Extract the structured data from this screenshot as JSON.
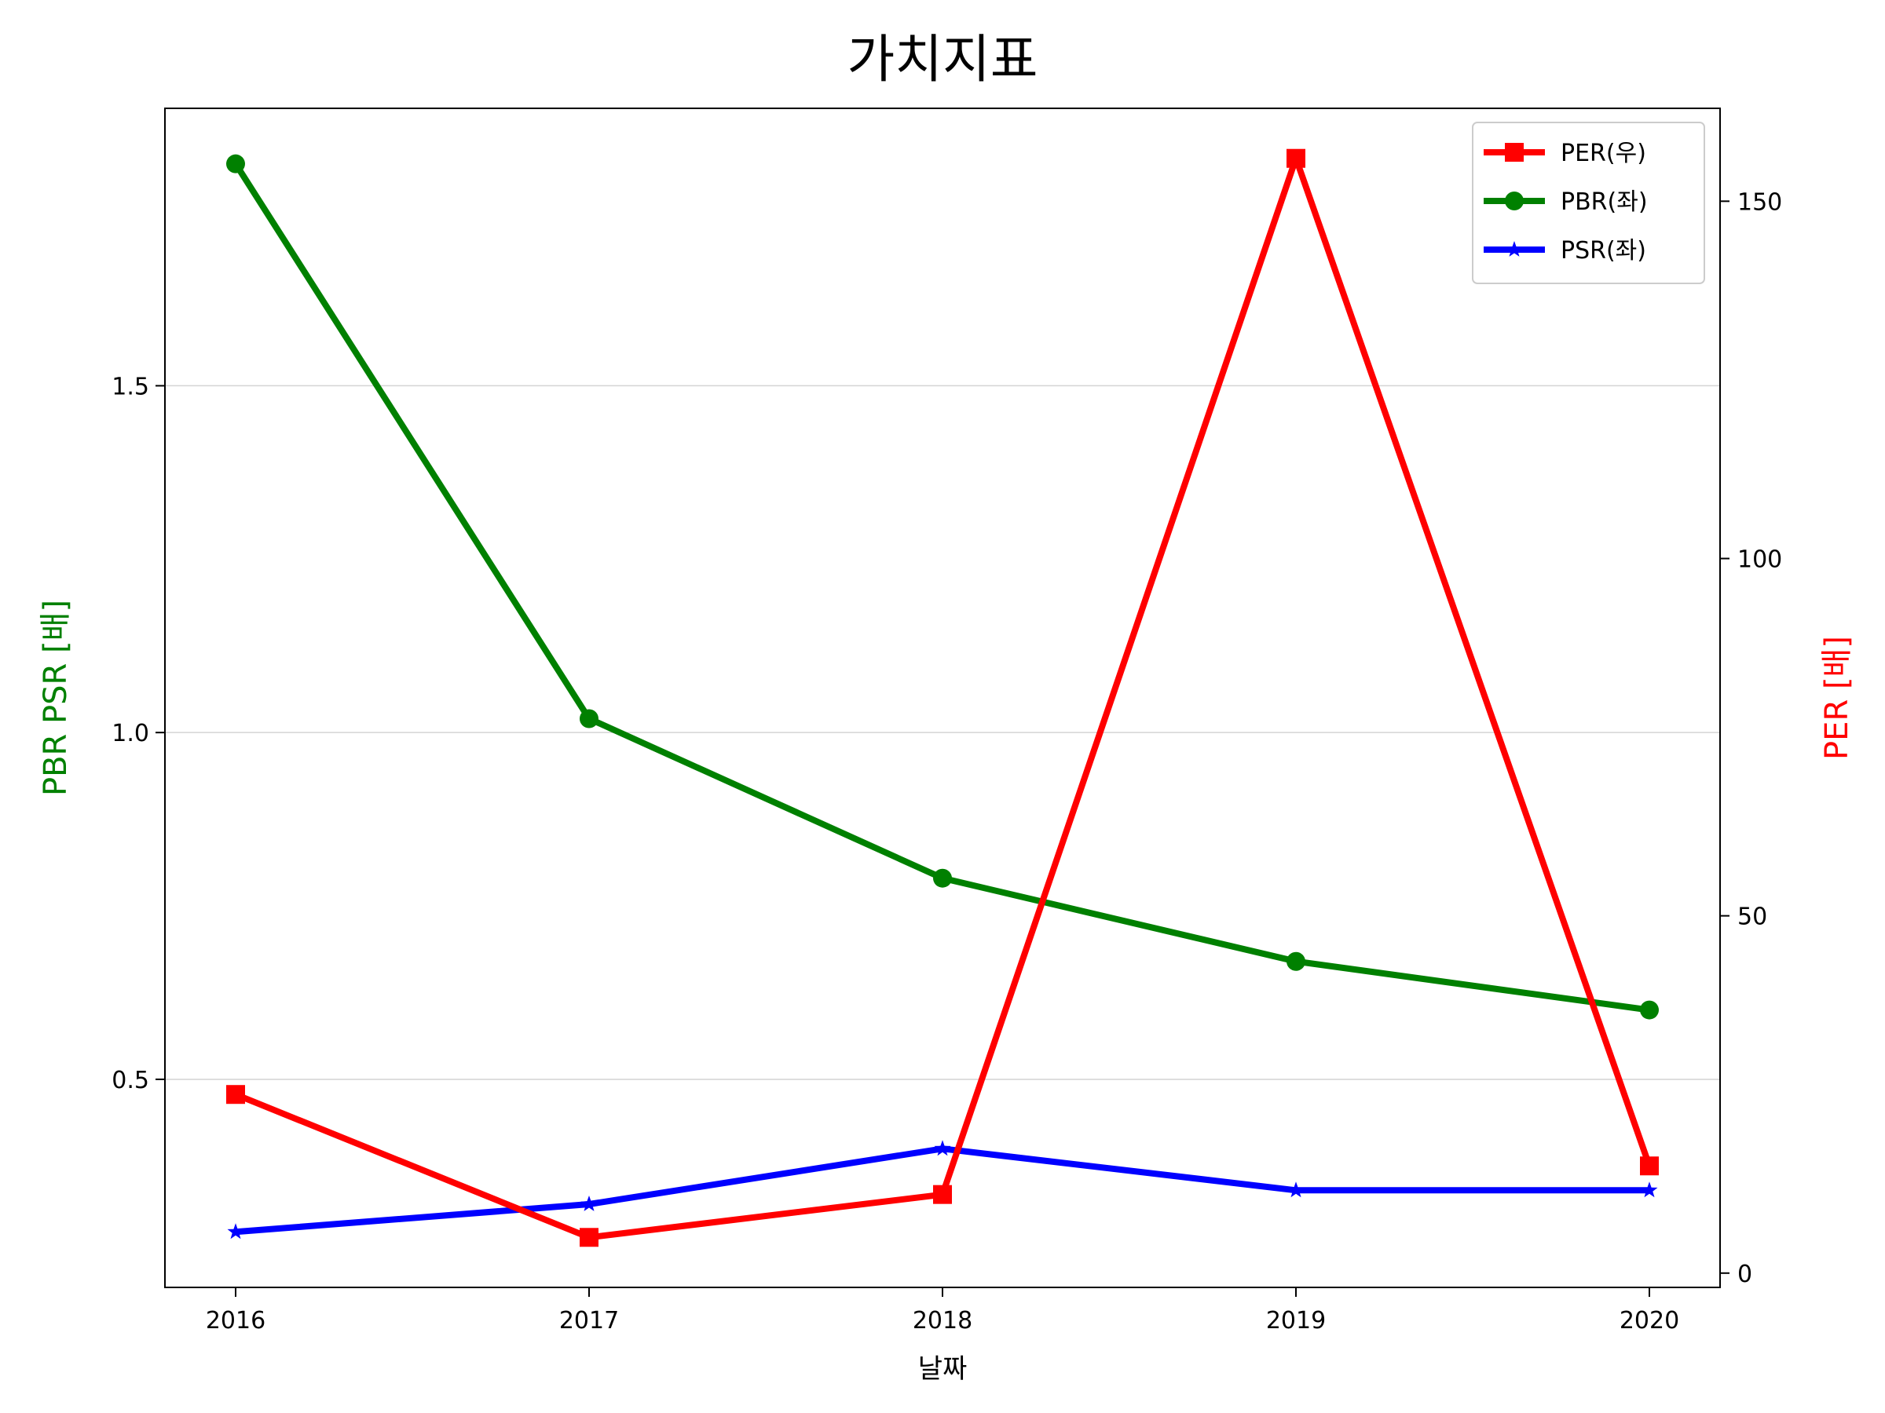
{
  "chart_data": {
    "type": "line",
    "title": "가치지표",
    "xlabel": "날짜",
    "ylabel_left": "PBR PSR [배]",
    "ylabel_right": "PER [배]",
    "categories": [
      "2016",
      "2017",
      "2018",
      "2019",
      "2020"
    ],
    "x_ticks": [
      "2016",
      "2017",
      "2018",
      "2019",
      "2020"
    ],
    "y_left": {
      "min": 0.2,
      "max": 1.9,
      "ticks": [
        "0.5",
        "1.0",
        "1.5"
      ]
    },
    "y_right": {
      "min": -2,
      "max": 163,
      "ticks": [
        "0",
        "50",
        "100",
        "150"
      ]
    },
    "grid": "horizontal",
    "legend": "top-right",
    "series": [
      {
        "name": "PER(우)",
        "axis": "right",
        "color": "#ff0000",
        "marker": "square",
        "values": [
          25,
          5,
          11,
          156,
          15
        ]
      },
      {
        "name": "PBR(좌)",
        "axis": "left",
        "color": "#008000",
        "marker": "circle",
        "values": [
          1.82,
          1.02,
          0.79,
          0.67,
          0.6
        ]
      },
      {
        "name": "PSR(좌)",
        "axis": "left",
        "color": "#0000ff",
        "marker": "star",
        "values": [
          0.28,
          0.32,
          0.4,
          0.34,
          0.34
        ]
      }
    ]
  }
}
